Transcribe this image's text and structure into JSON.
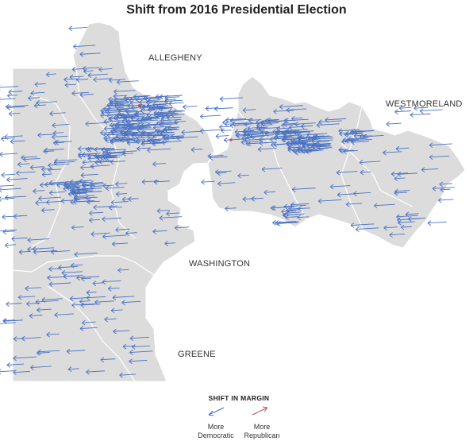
{
  "title": "Shift from 2016 Presidential Election",
  "labels": {
    "allegheny": "ALLEGHENY",
    "westmoreland": "WESTMORELAND",
    "washington": "WASHINGTON",
    "greene": "GREENE"
  },
  "legend": {
    "title": "SHIFT IN MARGIN",
    "dem": {
      "line1": "More",
      "line2": "Democratic",
      "color": "#4a72c4"
    },
    "rep": {
      "line1": "More",
      "line2": "Republican",
      "color": "#b05a5a"
    }
  },
  "colors": {
    "land": "#dcdcdc",
    "border": "#ffffff",
    "arrow_dem": "#4a72c4",
    "arrow_rep": "#b05a5a"
  }
}
